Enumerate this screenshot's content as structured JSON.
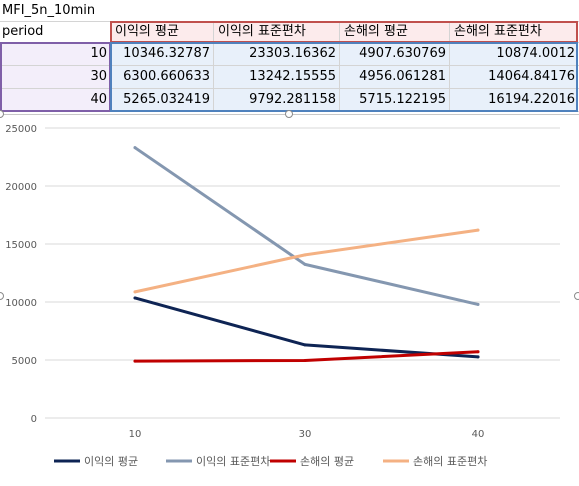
{
  "sheet": {
    "title_cell": "MFI_5n_10min",
    "row_header": "period",
    "columns": [
      "이익의 평균",
      "이익의 표준편차",
      "손해의 평균",
      "손해의 표준편차"
    ],
    "rows": [
      {
        "period": "10",
        "values": [
          "10346.32787",
          "23303.16362",
          "4907.630769",
          "10874.0012"
        ]
      },
      {
        "period": "30",
        "values": [
          "6300.660633",
          "13242.15555",
          "4956.061281",
          "14064.84176"
        ]
      },
      {
        "period": "40",
        "values": [
          "5265.032419",
          "9792.281158",
          "5715.122195",
          "16194.22016"
        ]
      }
    ]
  },
  "colors": {
    "series_1": "#0e2454",
    "series_2": "#8497b0",
    "series_3": "#c00000",
    "series_4": "#f4b183",
    "highlight_purple": "#7f5fa8",
    "highlight_red": "#c0504d",
    "highlight_blue": "#4f81bd"
  },
  "chart_data": {
    "type": "line",
    "categories": [
      "10",
      "30",
      "40"
    ],
    "series": [
      {
        "name": "이익의 평균",
        "values": [
          10346.32787,
          6300.660633,
          5265.032419
        ]
      },
      {
        "name": "이익의 표준편차",
        "values": [
          23303.16362,
          13242.15555,
          9792.281158
        ]
      },
      {
        "name": "손해의 평균",
        "values": [
          4907.630769,
          4956.061281,
          5715.122195
        ]
      },
      {
        "name": "손해의 표준편차",
        "values": [
          10874.0012,
          14064.84176,
          16194.22016
        ]
      }
    ],
    "y_ticks": [
      "0",
      "5000",
      "10000",
      "15000",
      "20000",
      "25000"
    ],
    "ylim": [
      0,
      25000
    ],
    "grid": true,
    "legend_position": "bottom"
  }
}
